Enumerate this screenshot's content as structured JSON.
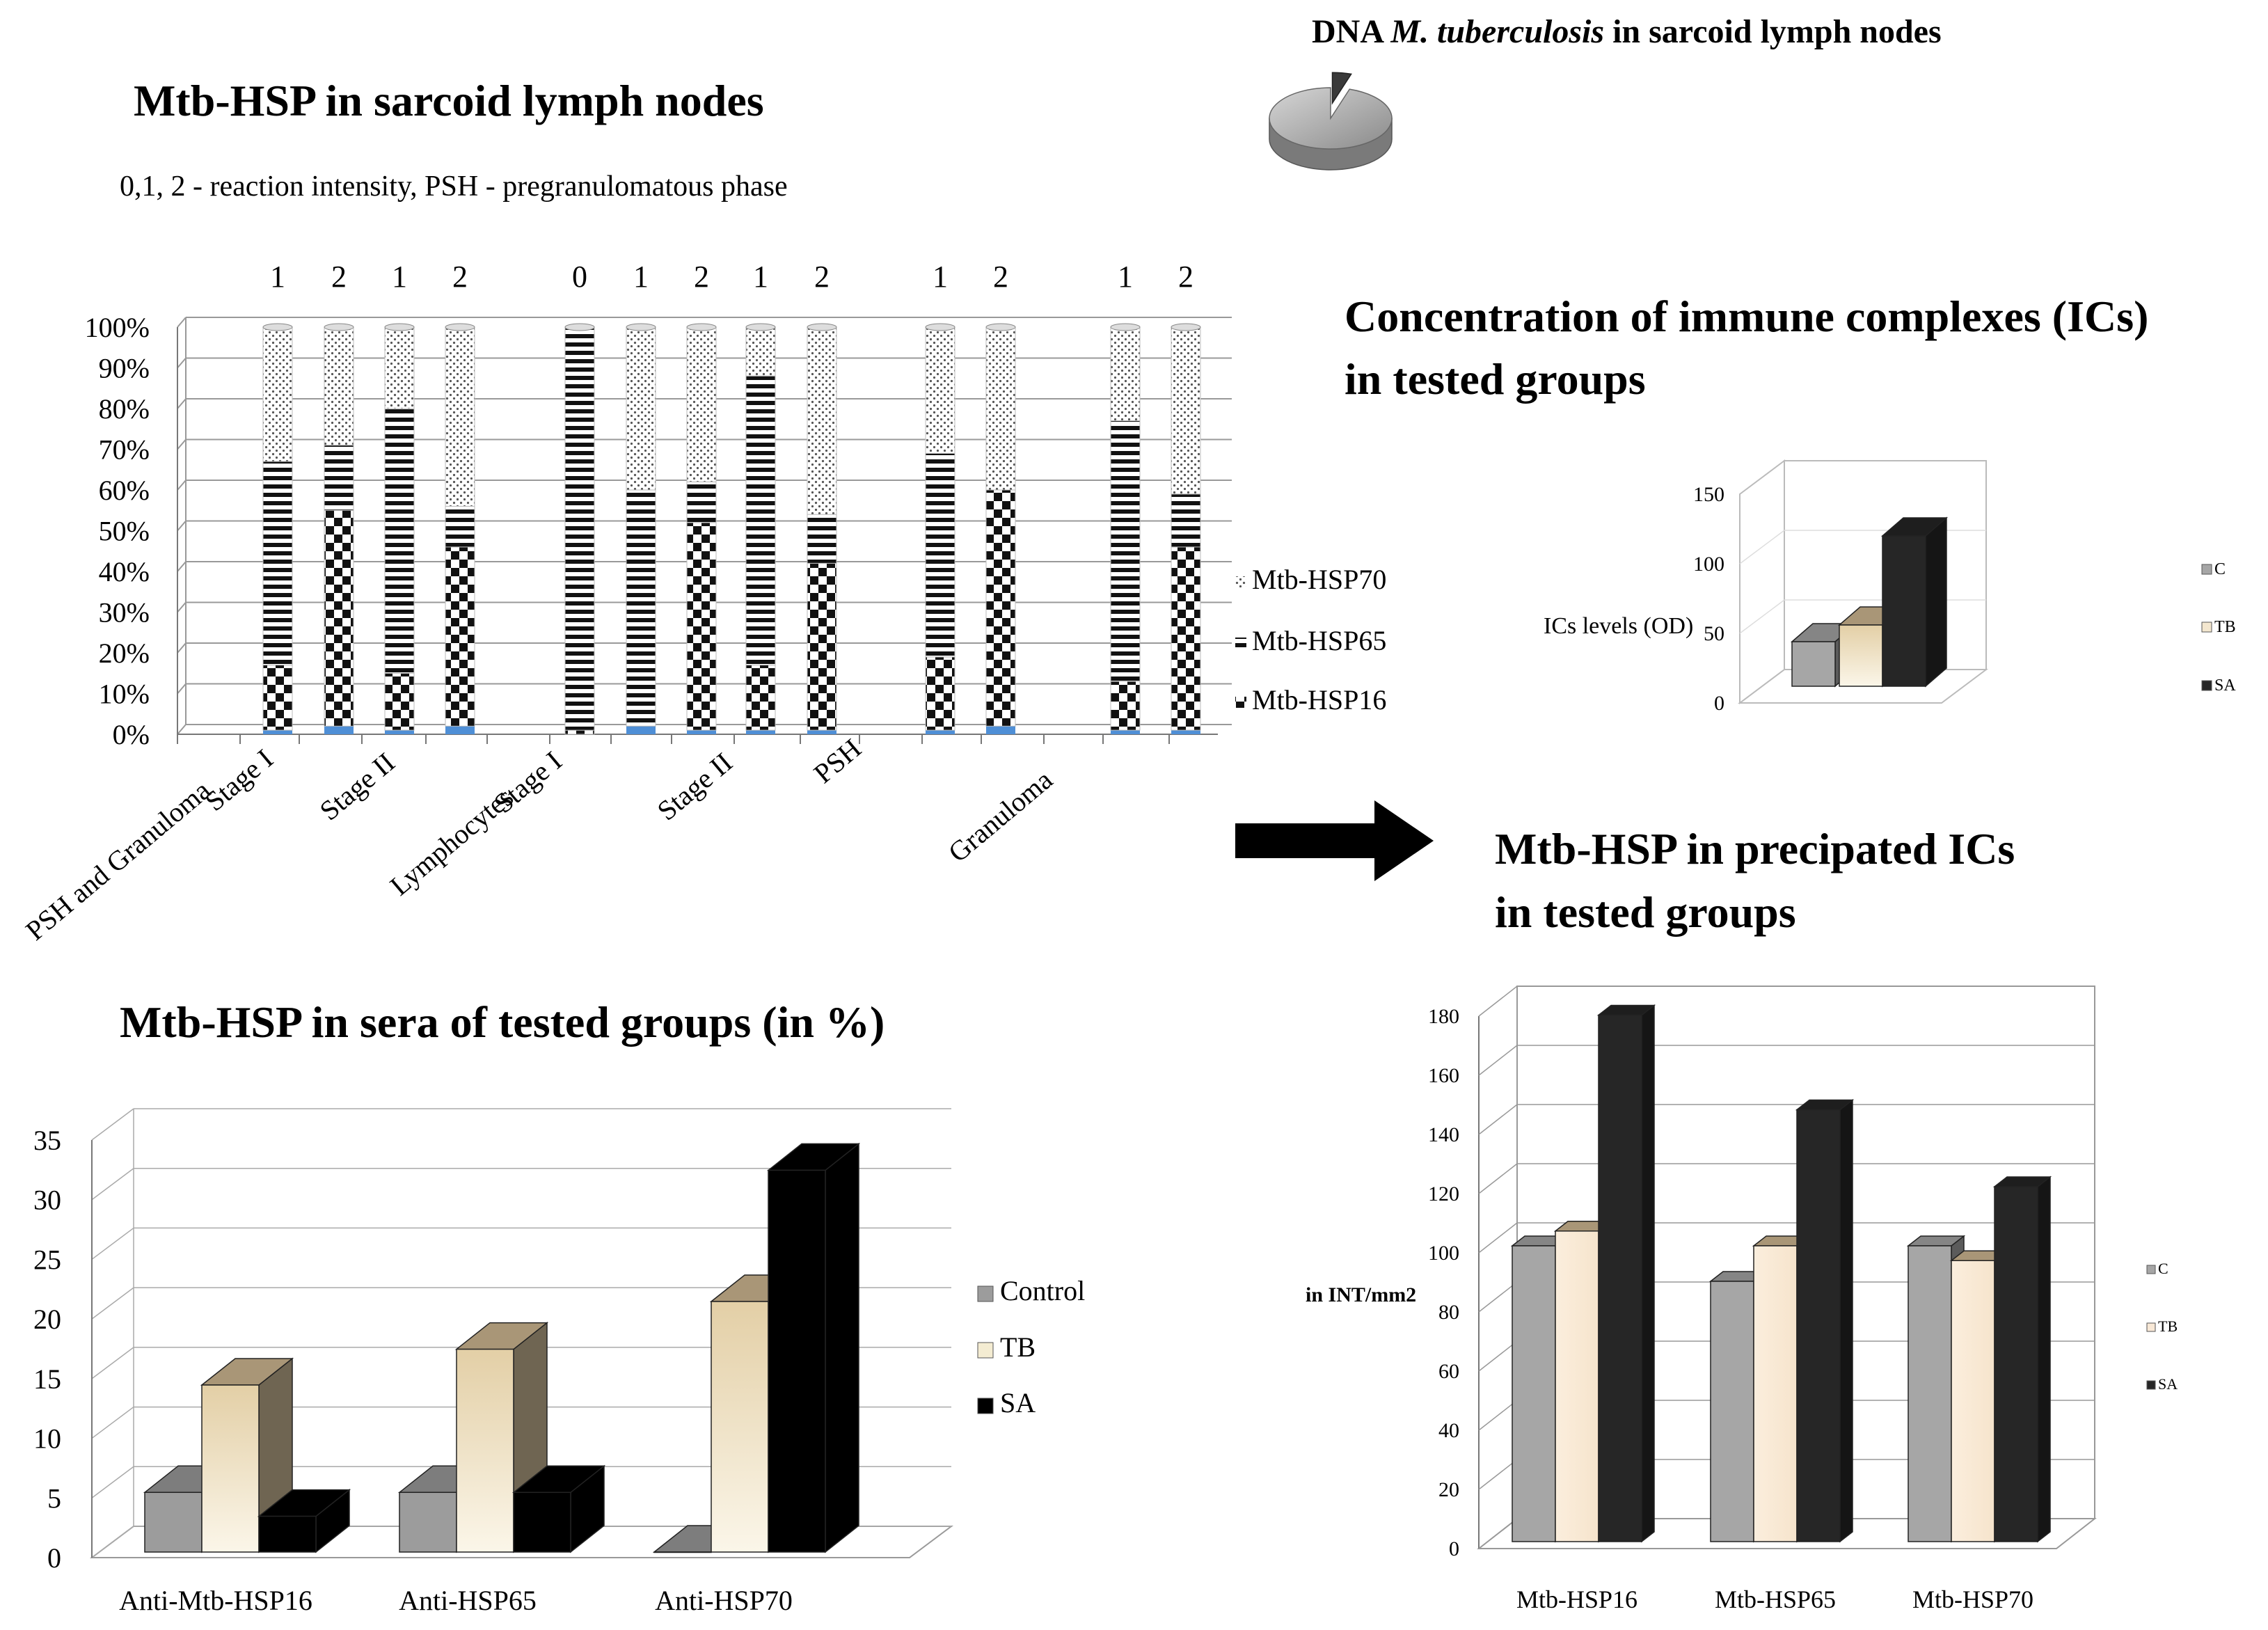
{
  "panel_titles": {
    "sarcoid_nodes": "Mtb-HSP in sarcoid lymph nodes",
    "sarcoid_subtitle": "0,1, 2 - reaction intensity, PSH - pregranulomatous phase",
    "dna_prefix": "DNA ",
    "dna_species": "M. tuberculosis",
    "dna_suffix": " in sarcoid lymph nodes",
    "ics_line1": "Concentration of immune complexes (ICs)",
    "ics_line2": "in tested groups",
    "precip_line1": "Mtb-HSP in precipated ICs",
    "precip_line2": "in tested groups",
    "sera": "Mtb-HSP in sera of tested groups (in %)"
  },
  "chart_data": [
    {
      "id": "stacked",
      "type": "bar",
      "stacked": true,
      "title": "Mtb-HSP in sarcoid lymph nodes",
      "ylim": [
        0,
        100
      ],
      "y_ticks": [
        "0%",
        "10%",
        "20%",
        "30%",
        "40%",
        "50%",
        "60%",
        "70%",
        "80%",
        "90%",
        "100%"
      ],
      "group_labels": [
        "PSH and Granuloma",
        "Stage I",
        "Stage II",
        "Lymphocytes",
        "Stage I",
        "Stage II",
        "PSH",
        "Granuloma"
      ],
      "bar_labels": [
        "1",
        "2",
        "1",
        "2",
        "0",
        "1",
        "2",
        "1",
        "2",
        "1",
        "2",
        "1",
        "2"
      ],
      "bars": [
        {
          "label": "1",
          "base": 1,
          "hsp16": 16,
          "hsp65": 50,
          "hsp70": 33
        },
        {
          "label": "2",
          "base": 2,
          "hsp16": 53,
          "hsp65": 16,
          "hsp70": 29
        },
        {
          "label": "1",
          "base": 1,
          "hsp16": 14,
          "hsp65": 65,
          "hsp70": 20
        },
        {
          "label": "2",
          "base": 2,
          "hsp16": 44,
          "hsp65": 10,
          "hsp70": 44
        },
        {
          "label": "0",
          "base": 0,
          "hsp16": 1,
          "hsp65": 99,
          "hsp70": 0
        },
        {
          "label": "1",
          "base": 2,
          "hsp16": 0,
          "hsp65": 58,
          "hsp70": 40
        },
        {
          "label": "2",
          "base": 1,
          "hsp16": 51,
          "hsp65": 10,
          "hsp70": 38
        },
        {
          "label": "1",
          "base": 1,
          "hsp16": 16,
          "hsp65": 71,
          "hsp70": 12
        },
        {
          "label": "2",
          "base": 1,
          "hsp16": 41,
          "hsp65": 12,
          "hsp70": 46
        },
        {
          "label": "1",
          "base": 1,
          "hsp16": 18,
          "hsp65": 50,
          "hsp70": 31
        },
        {
          "label": "2",
          "base": 2,
          "hsp16": 58,
          "hsp65": 0,
          "hsp70": 40
        },
        {
          "label": "1",
          "base": 1,
          "hsp16": 12,
          "hsp65": 64,
          "hsp70": 23
        },
        {
          "label": "2",
          "base": 1,
          "hsp16": 45,
          "hsp65": 13,
          "hsp70": 41
        }
      ],
      "legend": [
        "Mtb-HSP70",
        "Mtb-HSP65",
        "Mtb-HSP16"
      ]
    },
    {
      "id": "pie",
      "type": "pie",
      "title": "DNA M. tuberculosis in sarcoid lymph nodes",
      "values": [
        95,
        5
      ]
    },
    {
      "id": "ics",
      "type": "bar",
      "title": "Concentration of immune complexes (ICs) in tested groups",
      "ylabel": "ICs levels (OD)",
      "ylim": [
        0,
        150
      ],
      "y_ticks": [
        "0",
        "50",
        "100",
        "150"
      ],
      "categories": [
        "C",
        "TB",
        "SA"
      ],
      "values": [
        32,
        44,
        108
      ],
      "colors": [
        "#a6a6a6",
        "#f4e7cf",
        "#262626"
      ]
    },
    {
      "id": "precip",
      "type": "bar",
      "title": "Mtb-HSP in precipated ICs in tested groups",
      "ylabel": "in INT/mm2",
      "ylim": [
        0,
        180
      ],
      "y_ticks": [
        "0",
        "20",
        "40",
        "60",
        "80",
        "100",
        "120",
        "140",
        "160",
        "180"
      ],
      "categories": [
        "Mtb-HSP16",
        "Mtb-HSP65",
        "Mtb-HSP70"
      ],
      "series": [
        {
          "name": "C",
          "values": [
            100,
            88,
            100
          ],
          "color": "#a6a6a6"
        },
        {
          "name": "TB",
          "values": [
            105,
            100,
            95
          ],
          "color": "#f8e8d6"
        },
        {
          "name": "SA",
          "values": [
            178,
            146,
            120
          ],
          "color": "#262626"
        }
      ]
    },
    {
      "id": "sera",
      "type": "bar",
      "title": "Mtb-HSP in sera of tested groups (in %)",
      "ylim": [
        0,
        35
      ],
      "y_ticks": [
        "0",
        "5",
        "10",
        "15",
        "20",
        "25",
        "30",
        "35"
      ],
      "categories": [
        "Anti-Mtb-HSP16",
        "Anti-HSP65",
        "Anti-HSP70"
      ],
      "series": [
        {
          "name": "Control",
          "values": [
            5,
            5,
            0
          ],
          "color": "#9c9c9c"
        },
        {
          "name": "TB",
          "values": [
            14,
            17,
            21
          ],
          "color": "#f4ecd2"
        },
        {
          "name": "SA",
          "values": [
            3,
            5,
            32
          ],
          "color": "#000000"
        }
      ]
    }
  ]
}
